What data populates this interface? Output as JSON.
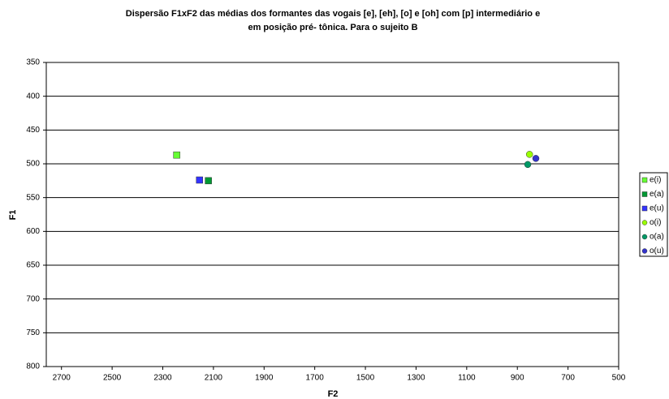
{
  "chart_data": {
    "type": "scatter",
    "title": [
      "Dispersão F1xF2 das médias dos formantes das vogais [e], [eh], [o] e  [oh]  com [p]  intermediário e",
      "em posição pré- tônica. Para o sujeito B"
    ],
    "x_label": "F2",
    "y_label": "F1",
    "xlim": [
      2760,
      500
    ],
    "xticks": [
      2700,
      2500,
      2300,
      2100,
      1900,
      1700,
      1500,
      1300,
      1100,
      900,
      700,
      500
    ],
    "ylim": [
      800,
      350
    ],
    "yticks": [
      350,
      400,
      450,
      500,
      550,
      600,
      650,
      700,
      750,
      800
    ],
    "grid": true,
    "legend": "right",
    "series": [
      {
        "name": "e(i)",
        "color": "#66ff33",
        "marker": "square",
        "x": [
          2245
        ],
        "values": [
          487
        ]
      },
      {
        "name": "e(a)",
        "color": "#009933",
        "marker": "square",
        "x": [
          2120
        ],
        "values": [
          525
        ]
      },
      {
        "name": "e(u)",
        "color": "#3333ff",
        "marker": "square",
        "x": [
          2155
        ],
        "values": [
          524
        ]
      },
      {
        "name": "o(i)",
        "color": "#99ff00",
        "marker": "circle",
        "x": [
          852
        ],
        "values": [
          486
        ]
      },
      {
        "name": "o(a)",
        "color": "#009966",
        "marker": "circle",
        "x": [
          859
        ],
        "values": [
          501
        ]
      },
      {
        "name": "o(u)",
        "color": "#3333cc",
        "marker": "circle",
        "x": [
          827
        ],
        "values": [
          492
        ]
      }
    ]
  }
}
